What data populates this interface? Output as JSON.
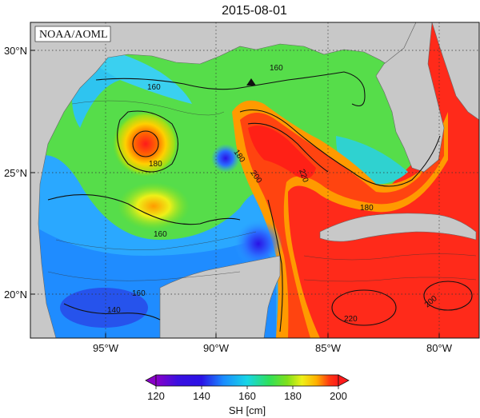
{
  "title": "2015-08-01",
  "credit": "NOAA/AOML",
  "lat_labels": [
    "30°N",
    "25°N",
    "20°N"
  ],
  "lon_labels": [
    "95°W",
    "90°W",
    "85°W",
    "80°W"
  ],
  "contour_labels": [
    "160",
    "160",
    "180",
    "180",
    "160",
    "200",
    "220",
    "180",
    "160",
    "140",
    "220",
    "200"
  ],
  "colorbar": {
    "label": "SH [cm]",
    "ticks": [
      "120",
      "140",
      "160",
      "180",
      "200"
    ],
    "colors": [
      "#8a00c8",
      "#2a12e6",
      "#1a8cff",
      "#17d6e6",
      "#2ee05a",
      "#7fe01a",
      "#eef018",
      "#ffb000",
      "#ff3a12",
      "#ff1a1a"
    ]
  },
  "land_color": "#c8c8c8",
  "marker": "triangle"
}
